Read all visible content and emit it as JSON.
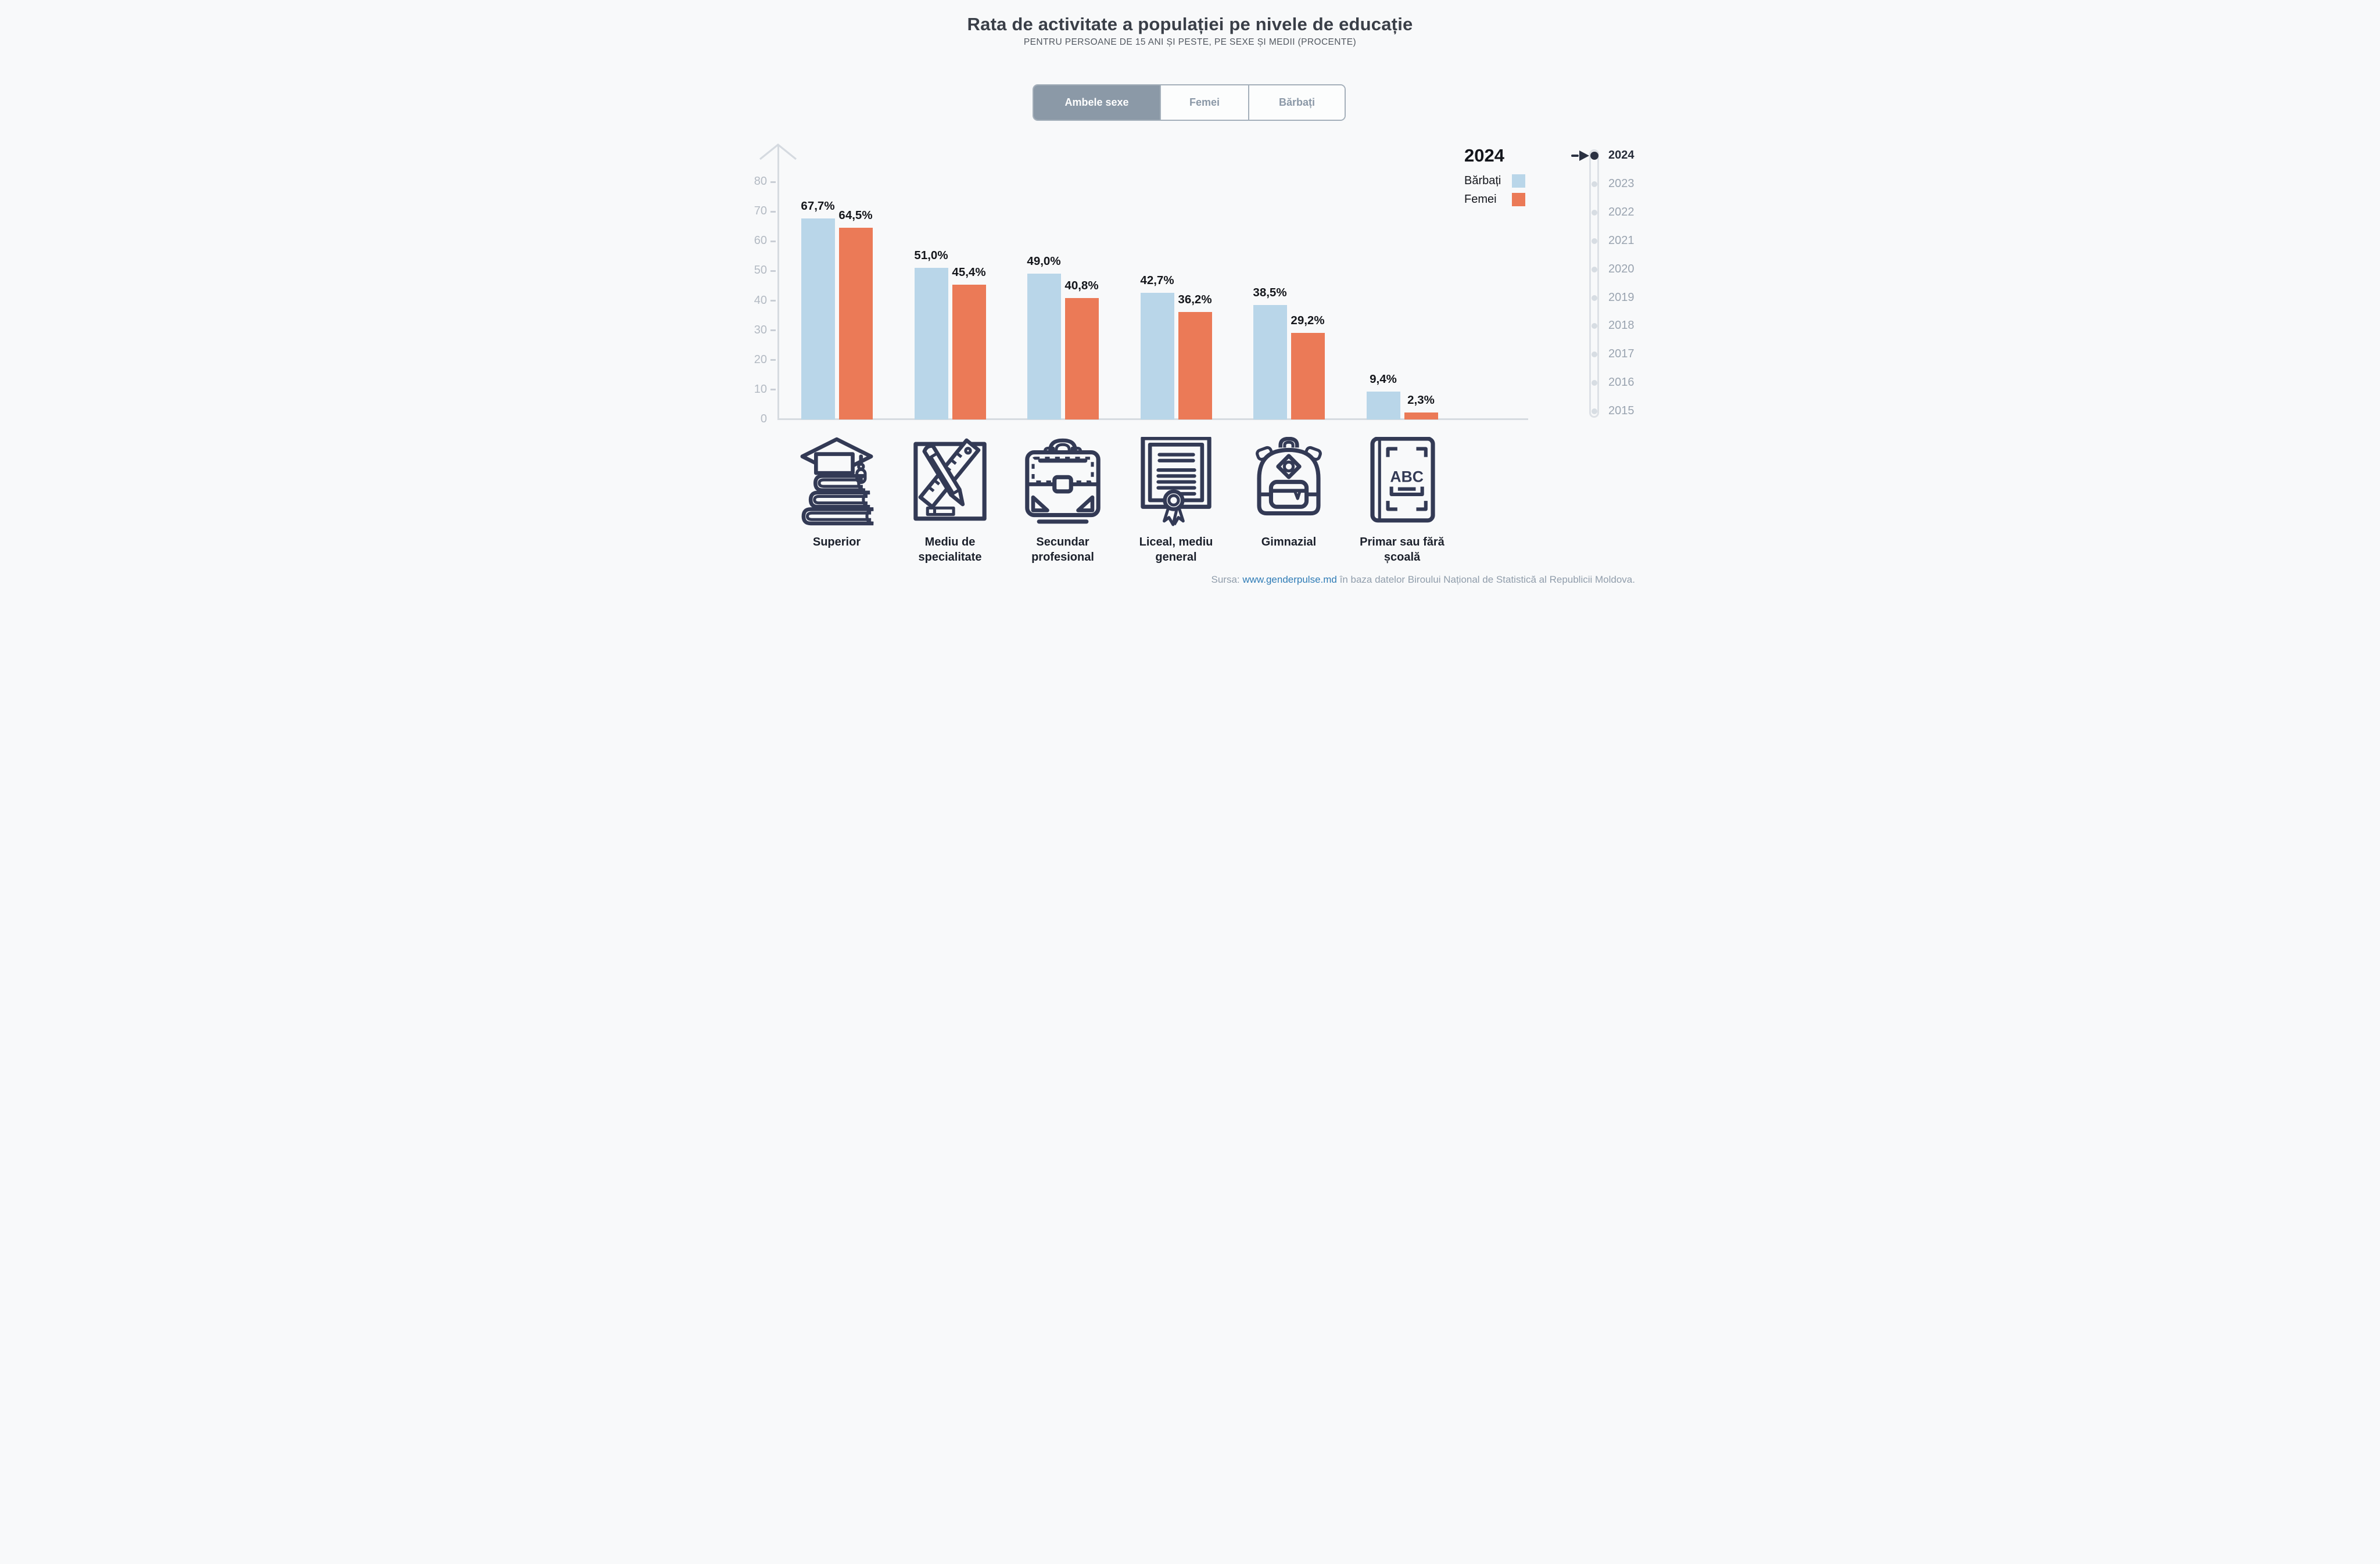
{
  "title": "Rata de activitate a populației pe nivele de educație",
  "subtitle": "PENTRU PERSOANE DE 15 ANI ȘI PESTE, PE SEXE ȘI MEDII (PROCENTE)",
  "tabs": {
    "items": [
      {
        "label": "Ambele sexe",
        "selected": true
      },
      {
        "label": "Femei",
        "selected": false
      },
      {
        "label": "Bărbați",
        "selected": false
      }
    ]
  },
  "legend": {
    "year": "2024",
    "items": [
      {
        "label": "Bărbați",
        "color": "#B9D6E9"
      },
      {
        "label": "Femei",
        "color": "#EB7A57"
      }
    ]
  },
  "timeline": {
    "active_year": "2024",
    "years": [
      "2024",
      "2023",
      "2022",
      "2021",
      "2020",
      "2019",
      "2018",
      "2017",
      "2016",
      "2015"
    ]
  },
  "chart_data": {
    "type": "bar",
    "title": "Rata de activitate a populației pe nivele de educație",
    "subtitle": "Pentru persoane de 15 ani și peste, pe sexe și medii (procente)",
    "categories": [
      "Superior",
      "Mediu de specialitate",
      "Secundar profesional",
      "Liceal, mediu general",
      "Gimnazial",
      "Primar sau fără școală"
    ],
    "series": [
      {
        "name": "Bărbați",
        "color": "#B9D6E9",
        "values": [
          67.7,
          51.0,
          49.0,
          42.7,
          38.5,
          9.4
        ],
        "labels": [
          "67,7%",
          "51,0%",
          "49,0%",
          "42,7%",
          "38,5%",
          "9,4%"
        ]
      },
      {
        "name": "Femei",
        "color": "#EB7A57",
        "values": [
          64.5,
          45.4,
          40.8,
          36.2,
          29.2,
          2.3
        ],
        "labels": [
          "64,5%",
          "45,4%",
          "40,8%",
          "36,2%",
          "29,2%",
          "2,3%"
        ]
      }
    ],
    "yticks": [
      0,
      10,
      20,
      30,
      40,
      50,
      60,
      70,
      80
    ],
    "ylim": [
      0,
      80
    ],
    "unit": "%",
    "grid": false,
    "legend_position": "top-right",
    "selected_year": "2024"
  },
  "icons": [
    "books-graduation-cap",
    "ruler-pencil",
    "briefcase",
    "diploma",
    "backpack",
    "abc-book"
  ],
  "source": {
    "prefix": "Sursa: ",
    "link": "www.genderpulse.md",
    "suffix": " în baza datelor Biroului Național de Statistică al Republicii Moldova."
  },
  "colors": {
    "background": "#F8F9FA",
    "bar_male": "#B9D6E9",
    "bar_female": "#EB7A57",
    "icon_outline": "#333A55",
    "axis": "#D6DBE0",
    "tick_label": "#B3BAC3",
    "tab_selected_bg": "#8B99A7",
    "tab_border": "#A4AFBA",
    "tab_text": "#8B98A7",
    "title": "#3A3F48",
    "subtitle": "#51575F",
    "value_label": "#14161B",
    "year_active": "#262C39",
    "year_inactive": "#9AA4B0",
    "source_text": "#909DAB",
    "source_link": "#2F7CB6"
  }
}
